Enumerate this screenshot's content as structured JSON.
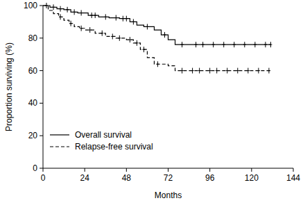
{
  "chart_data": {
    "type": "step",
    "x_label": "Months",
    "y_label": "Proportion surviving (%)",
    "xlim": [
      0,
      144
    ],
    "xticks": [
      0,
      24,
      48,
      72,
      96,
      120,
      144
    ],
    "ylim": [
      0,
      100
    ],
    "yticks": [
      0,
      20,
      40,
      60,
      80,
      100
    ],
    "grid": false,
    "legend": "lower left",
    "series": [
      {
        "name": "Overall survival",
        "color": "#000000",
        "line_style": "solid",
        "marker": "plus",
        "x": [
          0,
          4,
          8,
          12,
          16,
          20,
          26,
          32,
          38,
          44,
          50,
          54,
          58,
          64,
          68,
          72,
          76,
          131
        ],
        "values": [
          100,
          99,
          98,
          97.5,
          96,
          95.5,
          94,
          93,
          92.5,
          92,
          90,
          88,
          87,
          85,
          82,
          79,
          76,
          76
        ],
        "censored_x": [
          2,
          6,
          10,
          14,
          18,
          22,
          28,
          30,
          36,
          42,
          46,
          48,
          52,
          60,
          70,
          80,
          88,
          92,
          98,
          104,
          110,
          116,
          122,
          128,
          131
        ],
        "censored_values": [
          100,
          99,
          98,
          97.5,
          96,
          95.5,
          94,
          94,
          93,
          92.5,
          92,
          92,
          90,
          87,
          82,
          76,
          76,
          76,
          76,
          76,
          76,
          76,
          76,
          76,
          76
        ]
      },
      {
        "name": "Relapse-free survival",
        "color": "#000000",
        "line_style": "dashed",
        "marker": "plus",
        "x": [
          0,
          3,
          6,
          9,
          12,
          15,
          18,
          21,
          24,
          30,
          36,
          42,
          48,
          52,
          56,
          60,
          64,
          72,
          76,
          131
        ],
        "values": [
          100,
          97,
          95,
          93,
          91,
          89,
          87,
          86,
          85,
          83,
          81,
          80,
          79,
          77,
          73,
          68,
          64,
          63,
          60,
          60
        ],
        "censored_x": [
          10,
          16,
          22,
          27,
          34,
          40,
          44,
          50,
          54,
          58,
          66,
          80,
          86,
          90,
          96,
          100,
          106,
          112,
          118,
          124,
          130
        ],
        "censored_values": [
          93,
          89,
          86,
          85,
          83,
          81,
          80,
          79,
          77,
          73,
          64,
          60,
          60,
          60,
          60,
          60,
          60,
          60,
          60,
          60,
          60
        ]
      }
    ]
  }
}
